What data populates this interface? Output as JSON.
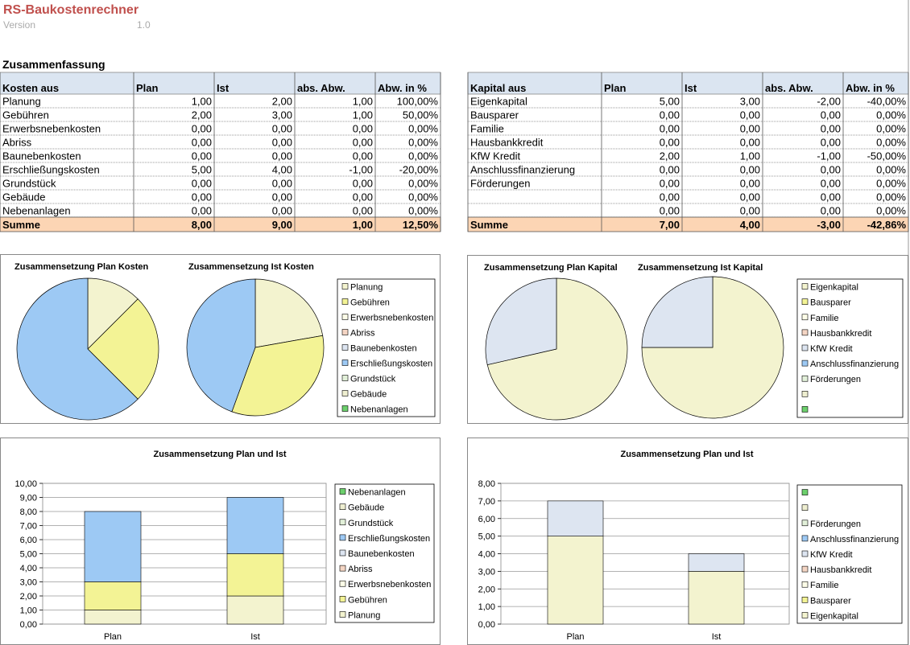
{
  "header": {
    "title": "RS-Baukostenrechner",
    "version_label": "Version",
    "version": "1.0"
  },
  "section_title": "Zusammenfassung",
  "tables": [
    {
      "columns": [
        "Kosten aus",
        "Plan",
        "Ist",
        "abs. Abw.",
        "Abw. in %"
      ],
      "rows": [
        [
          "Planung",
          "1,00",
          "2,00",
          "1,00",
          "100,00%"
        ],
        [
          "Gebühren",
          "2,00",
          "3,00",
          "1,00",
          "50,00%"
        ],
        [
          "Erwerbsnebenkosten",
          "0,00",
          "0,00",
          "0,00",
          "0,00%"
        ],
        [
          "Abriss",
          "0,00",
          "0,00",
          "0,00",
          "0,00%"
        ],
        [
          "Baunebenkosten",
          "0,00",
          "0,00",
          "0,00",
          "0,00%"
        ],
        [
          "Erschließungskosten",
          "5,00",
          "4,00",
          "-1,00",
          "-20,00%"
        ],
        [
          "Grundstück",
          "0,00",
          "0,00",
          "0,00",
          "0,00%"
        ],
        [
          "Gebäude",
          "0,00",
          "0,00",
          "0,00",
          "0,00%"
        ],
        [
          "Nebenanlagen",
          "0,00",
          "0,00",
          "0,00",
          "0,00%"
        ]
      ],
      "total": [
        "Summe",
        "8,00",
        "9,00",
        "1,00",
        "12,50%"
      ]
    },
    {
      "columns": [
        "Kapital aus",
        "Plan",
        "Ist",
        "abs. Abw.",
        "Abw. in %"
      ],
      "rows": [
        [
          "Eigenkapital",
          "5,00",
          "3,00",
          "-2,00",
          "-40,00%"
        ],
        [
          "Bausparer",
          "0,00",
          "0,00",
          "0,00",
          "0,00%"
        ],
        [
          "Familie",
          "0,00",
          "0,00",
          "0,00",
          "0,00%"
        ],
        [
          "Hausbankkredit",
          "0,00",
          "0,00",
          "0,00",
          "0,00%"
        ],
        [
          "KfW Kredit",
          "2,00",
          "1,00",
          "-1,00",
          "-50,00%"
        ],
        [
          "Anschlussfinanzierung",
          "0,00",
          "0,00",
          "0,00",
          "0,00%"
        ],
        [
          "Förderungen",
          "0,00",
          "0,00",
          "0,00",
          "0,00%"
        ],
        [
          null,
          "0,00",
          "0,00",
          "0,00",
          "0,00%"
        ],
        [
          null,
          "0,00",
          "0,00",
          "0,00",
          "0,00%"
        ]
      ],
      "total": [
        "Summe",
        "7,00",
        "4,00",
        "-3,00",
        "-42,86%"
      ]
    }
  ],
  "chart_data": [
    {
      "type": "pie",
      "categories": [
        "Planung",
        "Gebühren",
        "Erwerbsnebenkosten",
        "Abriss",
        "Baunebenkosten",
        "Erschließungskosten",
        "Grundstück",
        "Gebäude",
        "Nebenanlagen"
      ],
      "colors": [
        "#f3f3cf",
        "#f3f395",
        "#fdfde8",
        "#f4d5c4",
        "#dde5f1",
        "#9dc9f4",
        "#e2f0d9",
        "#eeeed0",
        "#6ccf6c"
      ],
      "series": [
        {
          "name": "Zusammensetzung Plan Kosten",
          "values": [
            1,
            2,
            0,
            0,
            0,
            5,
            0,
            0,
            0
          ]
        },
        {
          "name": "Zusammensetzung Ist Kosten",
          "values": [
            2,
            3,
            0,
            0,
            0,
            4,
            0,
            0,
            0
          ]
        }
      ]
    },
    {
      "type": "pie",
      "categories": [
        "Eigenkapital",
        "Bausparer",
        "Familie",
        "Hausbankkredit",
        "KfW Kredit",
        "Anschlussfinanzierung",
        "Förderungen",
        null,
        null
      ],
      "colors": [
        "#f3f3cf",
        "#f3f395",
        "#fdfde8",
        "#f4d5c4",
        "#dde5f1",
        "#9dc9f4",
        "#e2f0d9",
        "#eeeed0",
        "#6ccf6c"
      ],
      "series": [
        {
          "name": "Zusammensetzung Plan Kapital",
          "values": [
            5,
            0,
            0,
            0,
            2,
            0,
            0,
            0,
            0
          ]
        },
        {
          "name": "Zusammensetzung Ist Kapital",
          "values": [
            3,
            0,
            0,
            0,
            1,
            0,
            0,
            0,
            0
          ]
        }
      ]
    },
    {
      "type": "stacked-bar",
      "title": "Zusammensetzung Plan und Ist",
      "categories": [
        "Plan",
        "Ist"
      ],
      "ylim": [
        0,
        10
      ],
      "yticks": [
        {
          "value": 0,
          "label": "0,00"
        },
        {
          "value": 1,
          "label": "1,00"
        },
        {
          "value": 2,
          "label": "2,00"
        },
        {
          "value": 3,
          "label": "3,00"
        },
        {
          "value": 4,
          "label": "4,00"
        },
        {
          "value": 5,
          "label": "5,00"
        },
        {
          "value": 6,
          "label": "6,00"
        },
        {
          "value": 7,
          "label": "7,00"
        },
        {
          "value": 8,
          "label": "8,00"
        },
        {
          "value": 9,
          "label": "9,00"
        },
        {
          "value": 10,
          "label": "10,00"
        }
      ],
      "grid": true,
      "series": [
        {
          "name": "Planung",
          "color": "#f3f3cf",
          "values": [
            1,
            2
          ]
        },
        {
          "name": "Gebühren",
          "color": "#f3f395",
          "values": [
            2,
            3
          ]
        },
        {
          "name": "Erwerbsnebenkosten",
          "color": "#fdfde8",
          "values": [
            0,
            0
          ]
        },
        {
          "name": "Abriss",
          "color": "#f4d5c4",
          "values": [
            0,
            0
          ]
        },
        {
          "name": "Baunebenkosten",
          "color": "#dde5f1",
          "values": [
            0,
            0
          ]
        },
        {
          "name": "Erschließungskosten",
          "color": "#9dc9f4",
          "values": [
            5,
            4
          ]
        },
        {
          "name": "Grundstück",
          "color": "#e2f0d9",
          "values": [
            0,
            0
          ]
        },
        {
          "name": "Gebäude",
          "color": "#eeeed0",
          "values": [
            0,
            0
          ]
        },
        {
          "name": "Nebenanlagen",
          "color": "#6ccf6c",
          "values": [
            0,
            0
          ]
        }
      ]
    },
    {
      "type": "stacked-bar",
      "title": "Zusammensetzung Plan und Ist",
      "categories": [
        "Plan",
        "Ist"
      ],
      "ylim": [
        0,
        8
      ],
      "yticks": [
        {
          "value": 0,
          "label": "0,00"
        },
        {
          "value": 1,
          "label": "1,00"
        },
        {
          "value": 2,
          "label": "2,00"
        },
        {
          "value": 3,
          "label": "3,00"
        },
        {
          "value": 4,
          "label": "4,00"
        },
        {
          "value": 5,
          "label": "5,00"
        },
        {
          "value": 6,
          "label": "6,00"
        },
        {
          "value": 7,
          "label": "7,00"
        },
        {
          "value": 8,
          "label": "8,00"
        }
      ],
      "grid": true,
      "series": [
        {
          "name": "Eigenkapital",
          "color": "#f3f3cf",
          "values": [
            5,
            3
          ]
        },
        {
          "name": "Bausparer",
          "color": "#f3f395",
          "values": [
            0,
            0
          ]
        },
        {
          "name": "Familie",
          "color": "#fdfde8",
          "values": [
            0,
            0
          ]
        },
        {
          "name": "Hausbankkredit",
          "color": "#f4d5c4",
          "values": [
            0,
            0
          ]
        },
        {
          "name": "KfW Kredit",
          "color": "#dde5f1",
          "values": [
            2,
            1
          ]
        },
        {
          "name": "Anschlussfinanzierung",
          "color": "#9dc9f4",
          "values": [
            0,
            0
          ]
        },
        {
          "name": "Förderungen",
          "color": "#e2f0d9",
          "values": [
            0,
            0
          ]
        },
        {
          "name": null,
          "color": "#eeeed0",
          "values": [
            0,
            0
          ]
        },
        {
          "name": null,
          "color": "#6ccf6c",
          "values": [
            0,
            0
          ]
        }
      ]
    }
  ]
}
